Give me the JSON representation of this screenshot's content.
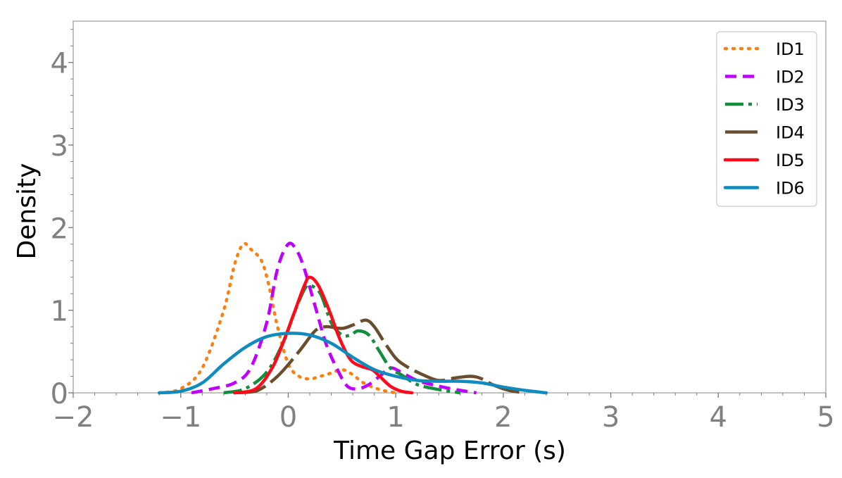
{
  "chart_data": {
    "type": "line",
    "title": "",
    "xlabel": "Time Gap Error (s)",
    "ylabel": "Density",
    "xlim": [
      -2,
      5
    ],
    "ylim": [
      0,
      4.5
    ],
    "x_ticks": [
      -2,
      -1,
      0,
      1,
      2,
      3,
      4,
      5
    ],
    "x_tick_labels": [
      "−2",
      "−1",
      "0",
      "1",
      "2",
      "3",
      "4",
      "5"
    ],
    "y_ticks": [
      0,
      1,
      2,
      3,
      4
    ],
    "y_tick_labels": [
      "0",
      "1",
      "2",
      "3",
      "4"
    ],
    "grid": false,
    "legend_position": "top-right",
    "series": [
      {
        "name": "ID1",
        "color": "#ff7f0e",
        "dash": "dotted",
        "points": [
          [
            -1.2,
            0
          ],
          [
            -1.0,
            0.05
          ],
          [
            -0.8,
            0.3
          ],
          [
            -0.6,
            1.0
          ],
          [
            -0.5,
            1.55
          ],
          [
            -0.42,
            1.8
          ],
          [
            -0.35,
            1.74
          ],
          [
            -0.25,
            1.6
          ],
          [
            -0.18,
            1.3
          ],
          [
            -0.1,
            0.8
          ],
          [
            0.0,
            0.35
          ],
          [
            0.1,
            0.2
          ],
          [
            0.2,
            0.17
          ],
          [
            0.3,
            0.2
          ],
          [
            0.4,
            0.24
          ],
          [
            0.5,
            0.28
          ],
          [
            0.6,
            0.22
          ],
          [
            0.7,
            0.12
          ],
          [
            0.85,
            0.04
          ],
          [
            1.0,
            0
          ]
        ]
      },
      {
        "name": "ID2",
        "color": "#bf00ff",
        "dash": "dashed",
        "points": [
          [
            -0.9,
            0
          ],
          [
            -0.7,
            0.05
          ],
          [
            -0.5,
            0.12
          ],
          [
            -0.35,
            0.3
          ],
          [
            -0.2,
            0.85
          ],
          [
            -0.1,
            1.5
          ],
          [
            0.0,
            1.8
          ],
          [
            0.08,
            1.72
          ],
          [
            0.15,
            1.5
          ],
          [
            0.25,
            1.05
          ],
          [
            0.35,
            0.6
          ],
          [
            0.45,
            0.3
          ],
          [
            0.55,
            0.08
          ],
          [
            0.65,
            0.05
          ],
          [
            0.75,
            0.1
          ],
          [
            0.85,
            0.2
          ],
          [
            0.95,
            0.3
          ],
          [
            1.05,
            0.25
          ],
          [
            1.2,
            0.15
          ],
          [
            1.4,
            0.08
          ],
          [
            1.6,
            0.03
          ],
          [
            1.75,
            0
          ]
        ]
      },
      {
        "name": "ID3",
        "color": "#138d3e",
        "dash": "dashdot",
        "points": [
          [
            -0.6,
            0
          ],
          [
            -0.4,
            0.05
          ],
          [
            -0.2,
            0.25
          ],
          [
            -0.05,
            0.6
          ],
          [
            0.05,
            0.95
          ],
          [
            0.15,
            1.25
          ],
          [
            0.2,
            1.3
          ],
          [
            0.3,
            1.2
          ],
          [
            0.4,
            0.85
          ],
          [
            0.5,
            0.7
          ],
          [
            0.58,
            0.7
          ],
          [
            0.65,
            0.75
          ],
          [
            0.75,
            0.7
          ],
          [
            0.85,
            0.5
          ],
          [
            0.95,
            0.3
          ],
          [
            1.05,
            0.22
          ],
          [
            1.2,
            0.1
          ],
          [
            1.4,
            0.04
          ],
          [
            1.6,
            0
          ]
        ]
      },
      {
        "name": "ID4",
        "color": "#6a4d2e",
        "dash": "longdash",
        "points": [
          [
            -0.5,
            0
          ],
          [
            -0.3,
            0.02
          ],
          [
            -0.1,
            0.2
          ],
          [
            0.1,
            0.5
          ],
          [
            0.25,
            0.75
          ],
          [
            0.35,
            0.8
          ],
          [
            0.5,
            0.78
          ],
          [
            0.6,
            0.82
          ],
          [
            0.72,
            0.88
          ],
          [
            0.8,
            0.8
          ],
          [
            0.9,
            0.6
          ],
          [
            1.0,
            0.42
          ],
          [
            1.1,
            0.32
          ],
          [
            1.25,
            0.22
          ],
          [
            1.4,
            0.15
          ],
          [
            1.55,
            0.18
          ],
          [
            1.7,
            0.2
          ],
          [
            1.8,
            0.17
          ],
          [
            1.9,
            0.1
          ],
          [
            2.05,
            0.03
          ],
          [
            2.2,
            0
          ]
        ]
      },
      {
        "name": "ID5",
        "color": "#ff0a1a",
        "dash": "solid",
        "points": [
          [
            -0.5,
            0
          ],
          [
            -0.3,
            0.05
          ],
          [
            -0.15,
            0.3
          ],
          [
            -0.05,
            0.6
          ],
          [
            0.05,
            0.95
          ],
          [
            0.15,
            1.3
          ],
          [
            0.2,
            1.4
          ],
          [
            0.28,
            1.3
          ],
          [
            0.38,
            1.0
          ],
          [
            0.48,
            0.65
          ],
          [
            0.58,
            0.4
          ],
          [
            0.68,
            0.32
          ],
          [
            0.78,
            0.28
          ],
          [
            0.85,
            0.2
          ],
          [
            0.95,
            0.08
          ],
          [
            1.05,
            0.02
          ],
          [
            1.15,
            0
          ]
        ]
      },
      {
        "name": "ID6",
        "color": "#0f8bbf",
        "dash": "solid",
        "points": [
          [
            -1.2,
            0
          ],
          [
            -1.0,
            0.02
          ],
          [
            -0.8,
            0.12
          ],
          [
            -0.6,
            0.35
          ],
          [
            -0.4,
            0.55
          ],
          [
            -0.2,
            0.68
          ],
          [
            0.0,
            0.72
          ],
          [
            0.2,
            0.7
          ],
          [
            0.4,
            0.6
          ],
          [
            0.6,
            0.43
          ],
          [
            0.8,
            0.28
          ],
          [
            1.0,
            0.2
          ],
          [
            1.2,
            0.15
          ],
          [
            1.4,
            0.14
          ],
          [
            1.6,
            0.14
          ],
          [
            1.8,
            0.12
          ],
          [
            2.0,
            0.07
          ],
          [
            2.2,
            0.03
          ],
          [
            2.4,
            0
          ]
        ]
      }
    ]
  }
}
